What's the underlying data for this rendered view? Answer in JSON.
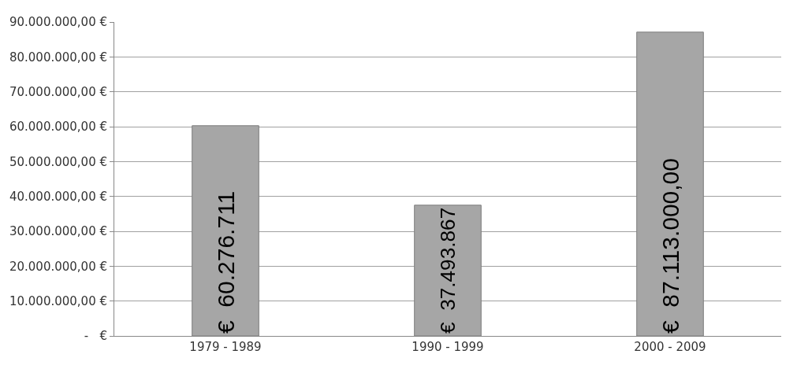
{
  "chart_data": {
    "type": "bar",
    "categories": [
      "1979 - 1989",
      "1990 - 1999",
      "2000 - 2009"
    ],
    "values": [
      60276711,
      37493867,
      87113000
    ],
    "value_labels": [
      "€  60.276.711",
      "€  37.493.867",
      "€  87.113.000,00"
    ],
    "color": "#a6a6a6",
    "ylim": [
      0,
      90000000
    ],
    "yticks": [
      {
        "value": 0,
        "label": "-   €"
      },
      {
        "value": 10000000,
        "label": "10.000.000,00 €"
      },
      {
        "value": 20000000,
        "label": "20.000.000,00 €"
      },
      {
        "value": 30000000,
        "label": "30.000.000,00 €"
      },
      {
        "value": 40000000,
        "label": "40.000.000,00 €"
      },
      {
        "value": 50000000,
        "label": "50.000.000,00 €"
      },
      {
        "value": 60000000,
        "label": "60.000.000,00 €"
      },
      {
        "value": 70000000,
        "label": "70.000.000,00 €"
      },
      {
        "value": 80000000,
        "label": "80.000.000,00 €"
      },
      {
        "value": 90000000,
        "label": "90.000.000,00 €"
      }
    ],
    "grid": "y"
  }
}
